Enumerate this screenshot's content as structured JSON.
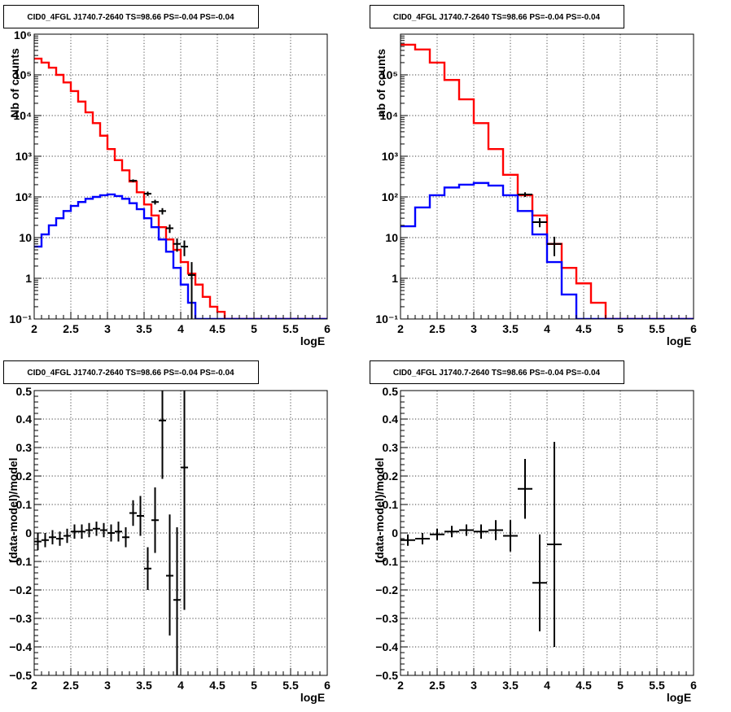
{
  "chart_data": [
    {
      "type": "histogram",
      "panel": "top-left",
      "title": "CID0_4FGL J1740.7-2640 TS=98.66 PS=-0.04 PS=-0.04",
      "xlabel": "logE",
      "ylabel": "Nb of counts",
      "xlim": [
        2,
        6
      ],
      "ylim": [
        0.1,
        1000000
      ],
      "yscale": "log",
      "grid": true,
      "x_ticks": [
        {
          "v": 2,
          "label": "2"
        },
        {
          "v": 2.5,
          "label": "2.5"
        },
        {
          "v": 3,
          "label": "3"
        },
        {
          "v": 3.5,
          "label": "3.5"
        },
        {
          "v": 4,
          "label": "4"
        },
        {
          "v": 4.5,
          "label": "4.5"
        },
        {
          "v": 5,
          "label": "5"
        },
        {
          "v": 5.5,
          "label": "5.5"
        },
        {
          "v": 6,
          "label": "6"
        }
      ],
      "y_ticks": [
        {
          "v": 0.1,
          "label": "10⁻¹"
        },
        {
          "v": 1,
          "label": "1"
        },
        {
          "v": 10,
          "label": "10"
        },
        {
          "v": 100,
          "label": "10²"
        },
        {
          "v": 1000,
          "label": "10³"
        },
        {
          "v": 10000,
          "label": "10⁴"
        },
        {
          "v": 100000,
          "label": "10⁵"
        },
        {
          "v": 1000000,
          "label": "10⁶"
        }
      ],
      "series": [
        {
          "color": "#ff0000",
          "edges": [
            2.0,
            2.1,
            2.2,
            2.3,
            2.4,
            2.5,
            2.6,
            2.7,
            2.8,
            2.9,
            3.0,
            3.1,
            3.2,
            3.3,
            3.4,
            3.5,
            3.6,
            3.7,
            3.8,
            3.9,
            4.0,
            4.1,
            4.2,
            4.3,
            4.4,
            4.5,
            4.6,
            4.7,
            4.8,
            4.9,
            5.0,
            5.1,
            5.2,
            5.3,
            5.4,
            5.5,
            5.6,
            5.7,
            5.8,
            5.9,
            6.0
          ],
          "values": [
            250000,
            200000,
            150000,
            100000,
            65000,
            40000,
            22000,
            12000,
            6500,
            3200,
            1500,
            800,
            450,
            240,
            130,
            65,
            35,
            18,
            9,
            5,
            2.5,
            1.3,
            0.7,
            0.35,
            0.2,
            0.15,
            0.1,
            0.1,
            0.1,
            0.1,
            0.1,
            0.1,
            0.1,
            0.1,
            0.1,
            0.1,
            0.1,
            0.1,
            0.1,
            0.1
          ]
        },
        {
          "color": "#0000ff",
          "edges": [
            2.0,
            2.1,
            2.2,
            2.3,
            2.4,
            2.5,
            2.6,
            2.7,
            2.8,
            2.9,
            3.0,
            3.1,
            3.2,
            3.3,
            3.4,
            3.5,
            3.6,
            3.7,
            3.8,
            3.9,
            4.0,
            4.1,
            4.2,
            4.3,
            4.4,
            4.5,
            4.6,
            4.7,
            4.8,
            4.9,
            5.0,
            5.1,
            5.2,
            5.3,
            5.4,
            5.5,
            5.6,
            5.7,
            5.8,
            5.9,
            6.0
          ],
          "values": [
            6,
            12,
            20,
            30,
            45,
            60,
            75,
            90,
            100,
            110,
            115,
            105,
            90,
            70,
            50,
            30,
            18,
            9,
            4.5,
            1.8,
            0.7,
            0.25,
            0.1,
            0.1,
            0.1,
            0.1,
            0.1,
            0.1,
            0.1,
            0.1,
            0.1,
            0.1,
            0.1,
            0.1,
            0.1,
            0.1,
            0.1,
            0.1,
            0.1,
            0.1
          ]
        }
      ],
      "points": [
        {
          "x": 3.35,
          "y": 250,
          "xerr": 0.05,
          "lo": 230,
          "hi": 270
        },
        {
          "x": 3.55,
          "y": 120,
          "xerr": 0.05,
          "lo": 105,
          "hi": 135
        },
        {
          "x": 3.65,
          "y": 75,
          "xerr": 0.05,
          "lo": 65,
          "hi": 85
        },
        {
          "x": 3.75,
          "y": 45,
          "xerr": 0.05,
          "lo": 37,
          "hi": 53
        },
        {
          "x": 3.85,
          "y": 17,
          "xerr": 0.05,
          "lo": 13,
          "hi": 21
        },
        {
          "x": 3.95,
          "y": 7,
          "xerr": 0.05,
          "lo": 4.5,
          "hi": 9.5
        },
        {
          "x": 4.05,
          "y": 6,
          "xerr": 0.05,
          "lo": 3.5,
          "hi": 8.5
        },
        {
          "x": 4.15,
          "y": 1.2,
          "xerr": 0.05,
          "lo": 0.1,
          "hi": 2.5
        }
      ]
    },
    {
      "type": "histogram",
      "panel": "top-right",
      "title": "CID0_4FGL J1740.7-2640 TS=98.66 PS=-0.04 PS=-0.04",
      "xlabel": "logE",
      "ylabel": "nb of counts",
      "xlim": [
        2,
        6
      ],
      "ylim": [
        0.1,
        1000000
      ],
      "yscale": "log",
      "grid": true,
      "x_ticks": [
        {
          "v": 2,
          "label": "2"
        },
        {
          "v": 2.5,
          "label": "2.5"
        },
        {
          "v": 3,
          "label": "3"
        },
        {
          "v": 3.5,
          "label": "3.5"
        },
        {
          "v": 4,
          "label": "4"
        },
        {
          "v": 4.5,
          "label": "4.5"
        },
        {
          "v": 5,
          "label": "5"
        },
        {
          "v": 5.5,
          "label": "5.5"
        },
        {
          "v": 6,
          "label": "6"
        }
      ],
      "y_ticks": [
        {
          "v": 0.1,
          "label": "10⁻¹"
        },
        {
          "v": 1,
          "label": "1"
        },
        {
          "v": 10,
          "label": "10"
        },
        {
          "v": 100,
          "label": "10²"
        },
        {
          "v": 1000,
          "label": "10³"
        },
        {
          "v": 10000,
          "label": "10⁴"
        },
        {
          "v": 100000,
          "label": "10⁵"
        }
      ],
      "series": [
        {
          "color": "#ff0000",
          "edges": [
            2.0,
            2.2,
            2.4,
            2.6,
            2.8,
            3.0,
            3.2,
            3.4,
            3.6,
            3.8,
            4.0,
            4.2,
            4.4,
            4.6,
            4.8,
            5.0,
            5.2,
            5.4,
            5.6,
            5.8,
            6.0
          ],
          "values": [
            550000,
            420000,
            200000,
            75000,
            25000,
            6500,
            1500,
            350,
            110,
            35,
            7,
            1.8,
            0.75,
            0.25,
            0.1,
            0.1,
            0.1,
            0.1,
            0.1,
            0.1
          ]
        },
        {
          "color": "#0000ff",
          "edges": [
            2.0,
            2.2,
            2.4,
            2.6,
            2.8,
            3.0,
            3.2,
            3.4,
            3.6,
            3.8,
            4.0,
            4.2,
            4.4,
            4.6,
            4.8,
            5.0,
            5.2,
            5.4,
            5.6,
            5.8,
            6.0
          ],
          "values": [
            19,
            55,
            110,
            170,
            200,
            220,
            190,
            110,
            45,
            12,
            2.5,
            0.4,
            0.1,
            0.1,
            0.1,
            0.1,
            0.1,
            0.1,
            0.1,
            0.1
          ]
        }
      ],
      "points": [
        {
          "x": 3.7,
          "y": 115,
          "xerr": 0.1,
          "lo": 100,
          "hi": 130
        },
        {
          "x": 3.9,
          "y": 24,
          "xerr": 0.1,
          "lo": 18,
          "hi": 30
        },
        {
          "x": 4.1,
          "y": 7,
          "xerr": 0.1,
          "lo": 3.5,
          "hi": 10.5
        }
      ]
    },
    {
      "type": "scatter",
      "panel": "bottom-left",
      "title": "CID0_4FGL J1740.7-2640 TS=98.66 PS=-0.04 PS=-0.04",
      "xlabel": "logE",
      "ylabel": "(data-model)/model",
      "xlim": [
        2,
        6
      ],
      "ylim": [
        -0.5,
        0.5
      ],
      "yscale": "linear",
      "grid": true,
      "x_ticks": [
        {
          "v": 2,
          "label": "2"
        },
        {
          "v": 2.5,
          "label": "2.5"
        },
        {
          "v": 3,
          "label": "3"
        },
        {
          "v": 3.5,
          "label": "3.5"
        },
        {
          "v": 4,
          "label": "4"
        },
        {
          "v": 4.5,
          "label": "4.5"
        },
        {
          "v": 5,
          "label": "5"
        },
        {
          "v": 5.5,
          "label": "5.5"
        },
        {
          "v": 6,
          "label": "6"
        }
      ],
      "y_ticks": [
        {
          "v": -0.5,
          "label": "−0.5"
        },
        {
          "v": -0.4,
          "label": "−0.4"
        },
        {
          "v": -0.3,
          "label": "−0.3"
        },
        {
          "v": -0.2,
          "label": "−0.2"
        },
        {
          "v": -0.1,
          "label": "−0.1"
        },
        {
          "v": 0,
          "label": "0"
        },
        {
          "v": 0.1,
          "label": "0.1"
        },
        {
          "v": 0.2,
          "label": "0.2"
        },
        {
          "v": 0.3,
          "label": "0.3"
        },
        {
          "v": 0.4,
          "label": "0.4"
        },
        {
          "v": 0.5,
          "label": "0.5"
        }
      ],
      "series": [],
      "points": [
        {
          "x": 2.05,
          "y": -0.03,
          "xerr": 0.05,
          "lo": -0.06,
          "hi": 0.0
        },
        {
          "x": 2.15,
          "y": -0.025,
          "xerr": 0.05,
          "lo": -0.05,
          "hi": 0.0
        },
        {
          "x": 2.25,
          "y": -0.015,
          "xerr": 0.05,
          "lo": -0.04,
          "hi": 0.01
        },
        {
          "x": 2.35,
          "y": -0.02,
          "xerr": 0.05,
          "lo": -0.045,
          "hi": 0.005
        },
        {
          "x": 2.45,
          "y": -0.01,
          "xerr": 0.05,
          "lo": -0.035,
          "hi": 0.015
        },
        {
          "x": 2.55,
          "y": 0.005,
          "xerr": 0.05,
          "lo": -0.02,
          "hi": 0.03
        },
        {
          "x": 2.65,
          "y": 0.005,
          "xerr": 0.05,
          "lo": -0.02,
          "hi": 0.03
        },
        {
          "x": 2.75,
          "y": 0.01,
          "xerr": 0.05,
          "lo": -0.015,
          "hi": 0.035
        },
        {
          "x": 2.85,
          "y": 0.015,
          "xerr": 0.05,
          "lo": -0.01,
          "hi": 0.04
        },
        {
          "x": 2.95,
          "y": 0.01,
          "xerr": 0.05,
          "lo": -0.015,
          "hi": 0.035
        },
        {
          "x": 3.05,
          "y": 0.0,
          "xerr": 0.05,
          "lo": -0.03,
          "hi": 0.03
        },
        {
          "x": 3.15,
          "y": 0.005,
          "xerr": 0.05,
          "lo": -0.03,
          "hi": 0.04
        },
        {
          "x": 3.25,
          "y": -0.015,
          "xerr": 0.05,
          "lo": -0.05,
          "hi": 0.02
        },
        {
          "x": 3.35,
          "y": 0.07,
          "xerr": 0.05,
          "lo": 0.025,
          "hi": 0.115
        },
        {
          "x": 3.45,
          "y": 0.06,
          "xerr": 0.05,
          "lo": -0.01,
          "hi": 0.13
        },
        {
          "x": 3.55,
          "y": -0.125,
          "xerr": 0.05,
          "lo": -0.2,
          "hi": -0.05
        },
        {
          "x": 3.65,
          "y": 0.045,
          "xerr": 0.05,
          "lo": -0.07,
          "hi": 0.16
        },
        {
          "x": 3.75,
          "y": 0.395,
          "xerr": 0.05,
          "lo": 0.19,
          "hi": 0.5
        },
        {
          "x": 3.85,
          "y": -0.15,
          "xerr": 0.05,
          "lo": -0.36,
          "hi": 0.065
        },
        {
          "x": 3.95,
          "y": -0.235,
          "xerr": 0.05,
          "lo": -0.5,
          "hi": 0.02
        },
        {
          "x": 4.05,
          "y": 0.23,
          "xerr": 0.05,
          "lo": -0.27,
          "hi": 0.5
        }
      ]
    },
    {
      "type": "scatter",
      "panel": "bottom-right",
      "title": "CID0_4FGL J1740.7-2640 TS=98.66 PS=-0.04 PS=-0.04",
      "xlabel": "logE",
      "ylabel": "(data-model)/model",
      "xlim": [
        2,
        6
      ],
      "ylim": [
        -0.5,
        0.5
      ],
      "yscale": "linear",
      "grid": true,
      "x_ticks": [
        {
          "v": 2,
          "label": "2"
        },
        {
          "v": 2.5,
          "label": "2.5"
        },
        {
          "v": 3,
          "label": "3"
        },
        {
          "v": 3.5,
          "label": "3.5"
        },
        {
          "v": 4,
          "label": "4"
        },
        {
          "v": 4.5,
          "label": "4.5"
        },
        {
          "v": 5,
          "label": "5"
        },
        {
          "v": 5.5,
          "label": "5.5"
        },
        {
          "v": 6,
          "label": "6"
        }
      ],
      "y_ticks": [
        {
          "v": -0.5,
          "label": "−0.5"
        },
        {
          "v": -0.4,
          "label": "−0.4"
        },
        {
          "v": -0.3,
          "label": "−0.3"
        },
        {
          "v": -0.2,
          "label": "−0.2"
        },
        {
          "v": -0.1,
          "label": "−0.1"
        },
        {
          "v": 0,
          "label": "0"
        },
        {
          "v": 0.1,
          "label": "0.1"
        },
        {
          "v": 0.2,
          "label": "0.2"
        },
        {
          "v": 0.3,
          "label": "0.3"
        },
        {
          "v": 0.4,
          "label": "0.4"
        },
        {
          "v": 0.5,
          "label": "0.5"
        }
      ],
      "series": [],
      "points": [
        {
          "x": 2.1,
          "y": -0.025,
          "xerr": 0.1,
          "lo": -0.045,
          "hi": -0.005
        },
        {
          "x": 2.3,
          "y": -0.02,
          "xerr": 0.1,
          "lo": -0.04,
          "hi": 0.0
        },
        {
          "x": 2.5,
          "y": -0.005,
          "xerr": 0.1,
          "lo": -0.025,
          "hi": 0.015
        },
        {
          "x": 2.7,
          "y": 0.005,
          "xerr": 0.1,
          "lo": -0.015,
          "hi": 0.025
        },
        {
          "x": 2.9,
          "y": 0.01,
          "xerr": 0.1,
          "lo": -0.01,
          "hi": 0.03
        },
        {
          "x": 3.1,
          "y": 0.005,
          "xerr": 0.1,
          "lo": -0.02,
          "hi": 0.03
        },
        {
          "x": 3.3,
          "y": 0.01,
          "xerr": 0.1,
          "lo": -0.025,
          "hi": 0.045
        },
        {
          "x": 3.5,
          "y": -0.01,
          "xerr": 0.1,
          "lo": -0.065,
          "hi": 0.045
        },
        {
          "x": 3.7,
          "y": 0.155,
          "xerr": 0.1,
          "lo": 0.05,
          "hi": 0.26
        },
        {
          "x": 3.9,
          "y": -0.175,
          "xerr": 0.1,
          "lo": -0.345,
          "hi": -0.005
        },
        {
          "x": 4.1,
          "y": -0.04,
          "xerr": 0.1,
          "lo": -0.4,
          "hi": 0.32
        }
      ]
    }
  ]
}
